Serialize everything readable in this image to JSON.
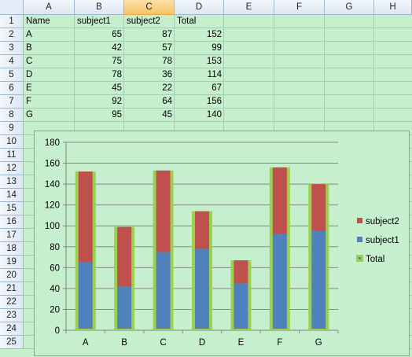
{
  "columns": [
    "A",
    "B",
    "C",
    "D",
    "E",
    "F",
    "G",
    "H"
  ],
  "selected_column": "C",
  "rows": [
    "1",
    "2",
    "3",
    "4",
    "5",
    "6",
    "7",
    "8",
    "9",
    "10",
    "11",
    "12",
    "13",
    "14",
    "15",
    "16",
    "17",
    "18",
    "19",
    "20",
    "21",
    "22",
    "23",
    "24",
    "25"
  ],
  "table": {
    "headers": [
      "Name",
      "subject1",
      "subject2",
      "Total"
    ],
    "records": [
      {
        "name": "A",
        "s1": "65",
        "s2": "87",
        "total": "152"
      },
      {
        "name": "B",
        "s1": "42",
        "s2": "57",
        "total": "99"
      },
      {
        "name": "C",
        "s1": "75",
        "s2": "78",
        "total": "153"
      },
      {
        "name": "D",
        "s1": "78",
        "s2": "36",
        "total": "114"
      },
      {
        "name": "E",
        "s1": "45",
        "s2": "22",
        "total": "67"
      },
      {
        "name": "F",
        "s1": "92",
        "s2": "64",
        "total": "156"
      },
      {
        "name": "G",
        "s1": "95",
        "s2": "45",
        "total": "140"
      }
    ]
  },
  "chart_data": {
    "type": "bar",
    "stacked": true,
    "categories": [
      "A",
      "B",
      "C",
      "D",
      "E",
      "F",
      "G"
    ],
    "series": [
      {
        "name": "subject1",
        "values": [
          65,
          42,
          75,
          78,
          45,
          92,
          95
        ],
        "color": "#4f81bd"
      },
      {
        "name": "subject2",
        "values": [
          87,
          57,
          78,
          36,
          22,
          64,
          45
        ],
        "color": "#c0504d"
      },
      {
        "name": "Total",
        "values": [
          152,
          99,
          153,
          114,
          67,
          156,
          140
        ],
        "color": "#9bd14f"
      }
    ],
    "ylim": [
      0,
      180
    ],
    "yticks": [
      "0",
      "20",
      "40",
      "60",
      "80",
      "100",
      "120",
      "140",
      "160",
      "180"
    ],
    "grid": true,
    "legend_position": "right"
  },
  "colors": {
    "sheet_bg": "#c6efce",
    "gridline": "#a5cfa9",
    "chart_axis": "#808080"
  }
}
